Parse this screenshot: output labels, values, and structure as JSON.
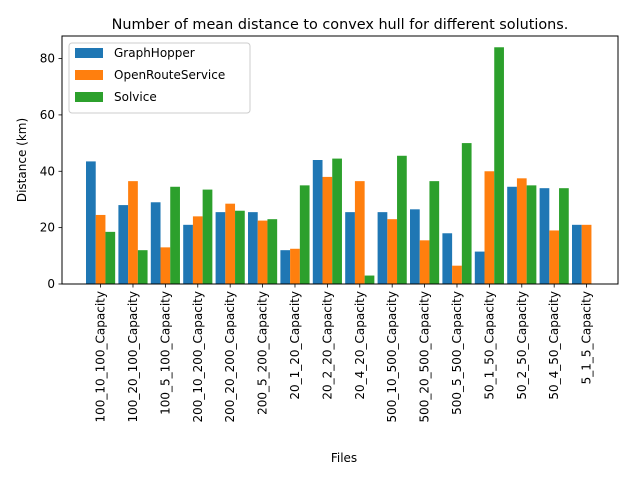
{
  "chart_data": {
    "type": "bar",
    "title": "Number of mean distance to convex hull for different solutions.",
    "xlabel": "Files",
    "ylabel": "Distance (km)",
    "ylim": [
      0,
      88
    ],
    "yticks": [
      0,
      20,
      40,
      60,
      80
    ],
    "grid": false,
    "legend_position": "top-left",
    "categories": [
      "100_10_100_Capacity",
      "100_20_100_Capacity",
      "100_5_100_Capacity",
      "200_10_200_Capacity",
      "200_20_200_Capacity",
      "200_5_200_Capacity",
      "20_1_20_Capacity",
      "20_2_20_Capacity",
      "20_4_20_Capacity",
      "500_10_500_Capacity",
      "500_20_500_Capacity",
      "500_5_500_Capacity",
      "50_1_50_Capacity",
      "50_2_50_Capacity",
      "50_4_50_Capacity",
      "5_1_5_Capacity"
    ],
    "series": [
      {
        "name": "GraphHopper",
        "color": "#1f77b4",
        "values": [
          43.5,
          28.0,
          29.0,
          21.0,
          25.5,
          25.5,
          12.0,
          44.0,
          25.5,
          25.5,
          26.5,
          18.0,
          11.5,
          34.5,
          34.0,
          21.0
        ]
      },
      {
        "name": "OpenRouteService",
        "color": "#ff7f0e",
        "values": [
          24.5,
          36.5,
          13.0,
          24.0,
          28.5,
          22.5,
          12.5,
          38.0,
          36.5,
          23.0,
          15.5,
          6.5,
          40.0,
          37.5,
          19.0,
          21.0
        ]
      },
      {
        "name": "Solvice",
        "color": "#2ca02c",
        "values": [
          18.5,
          12.0,
          34.5,
          33.5,
          26.0,
          23.0,
          35.0,
          44.5,
          3.0,
          45.5,
          36.5,
          50.0,
          84.0,
          35.0,
          34.0,
          0
        ]
      }
    ]
  }
}
